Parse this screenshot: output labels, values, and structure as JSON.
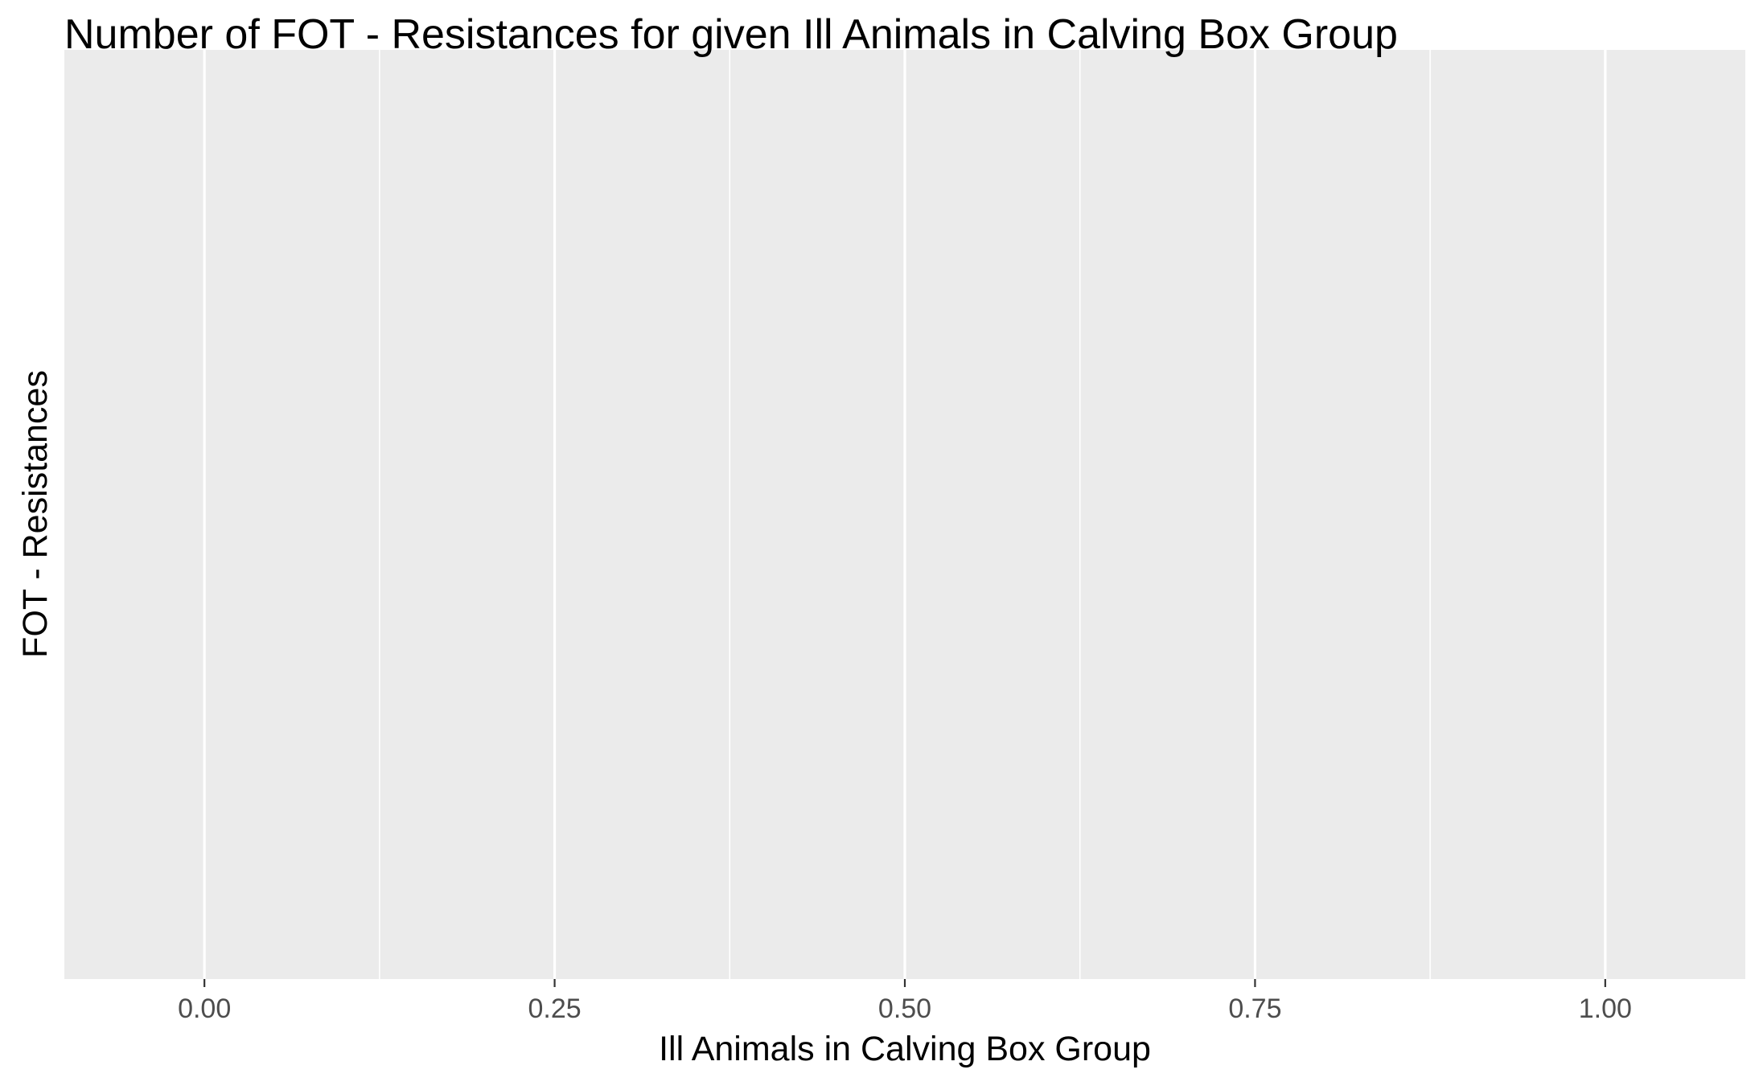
{
  "chart_data": {
    "type": "scatter",
    "title": "Number of FOT - Resistances for given Ill Animals in Calving Box Group",
    "xlabel": "Ill Animals in Calving Box Group",
    "ylabel": "FOT - Resistances",
    "xlim": [
      -0.1,
      1.1
    ],
    "x_ticks": [
      0,
      0.25,
      0.5,
      0.75,
      1
    ],
    "x_tick_labels": [
      "0.00",
      "0.25",
      "0.50",
      "0.75",
      "1.00"
    ],
    "x_minor_ticks": [
      0.125,
      0.375,
      0.625,
      0.875
    ],
    "y_ticks": [],
    "series": [],
    "grid": true,
    "legend": "none",
    "colors": {
      "panel_background": "#EBEBEB",
      "grid": "#FFFFFF",
      "tick_label": "#4D4D4D",
      "text": "#000000"
    }
  }
}
